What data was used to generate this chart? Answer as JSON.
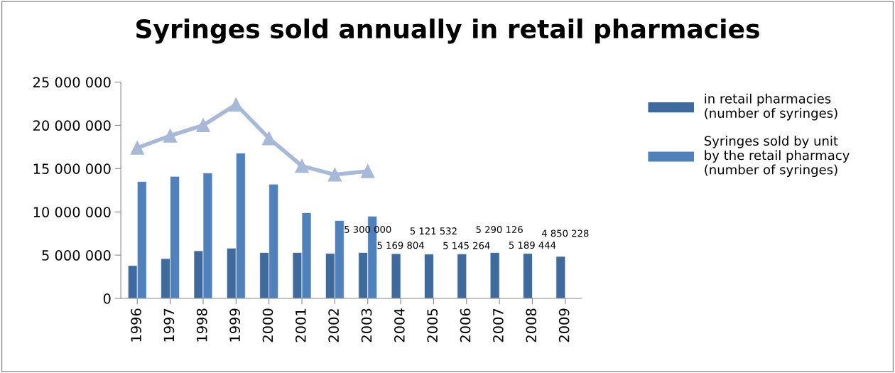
{
  "chart_data": {
    "type": "bar",
    "title": "Syringes sold annually in retail pharmacies",
    "categories": [
      "1996",
      "1997",
      "1998",
      "1999",
      "2000",
      "2001",
      "2002",
      "2003",
      "2004",
      "2005",
      "2006",
      "2007",
      "2008",
      "2009"
    ],
    "series": [
      {
        "name": "in retail pharmacies (number of syringes)",
        "color": "#3f6a9e",
        "values": [
          3800000,
          4600000,
          5500000,
          5800000,
          5300000,
          5300000,
          5200000,
          5300000,
          5169804,
          5121532,
          5145264,
          5290126,
          5189444,
          4850228
        ],
        "value_labels": [
          null,
          null,
          null,
          null,
          null,
          null,
          null,
          "5 300 000",
          "5 169 804",
          "5 121 532",
          "5 145 264",
          "5 290 126",
          "5 189 444",
          "4 850 228"
        ]
      },
      {
        "name": "Syringes sold by unit by the retail pharmacy (number of syringes)",
        "color": "#4f81bd",
        "values": [
          13500000,
          14100000,
          14500000,
          16800000,
          13200000,
          9900000,
          9000000,
          9500000,
          null,
          null,
          null,
          null,
          null,
          null
        ]
      },
      {
        "type": "line",
        "color": "#a7b9d9",
        "marker": "triangle",
        "values": [
          17400000,
          18800000,
          20000000,
          22400000,
          18500000,
          15300000,
          14300000,
          14700000,
          null,
          null,
          null,
          null,
          null,
          null
        ]
      }
    ],
    "ylim": [
      0,
      25000000
    ],
    "yticks": [
      {
        "value": 0,
        "label": "0"
      },
      {
        "value": 5000000,
        "label": "5 000 000"
      },
      {
        "value": 10000000,
        "label": "10 000 000"
      },
      {
        "value": 15000000,
        "label": "15 000 000"
      },
      {
        "value": 20000000,
        "label": "20 000 000"
      },
      {
        "value": 25000000,
        "label": "25 000 000"
      }
    ],
    "grid": false,
    "legend": "right"
  }
}
